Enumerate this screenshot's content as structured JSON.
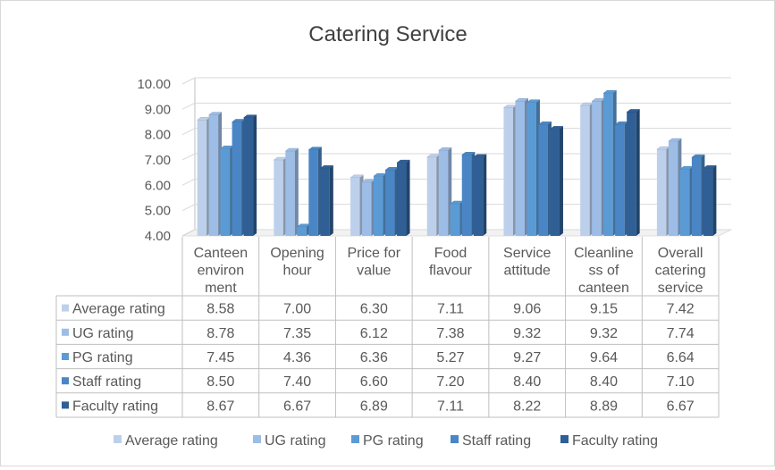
{
  "chart_data": {
    "type": "bar",
    "title": "Catering Service",
    "xlabel": "",
    "ylabel": "",
    "ylim": [
      4.0,
      10.0
    ],
    "y_ticks": [
      "4.00",
      "5.00",
      "6.00",
      "7.00",
      "8.00",
      "9.00",
      "10.00"
    ],
    "grid": true,
    "legend_position": "bottom",
    "categories": [
      [
        "Canteen",
        "environ",
        "ment"
      ],
      [
        "Opening",
        "hour"
      ],
      [
        "Price for",
        "value"
      ],
      [
        "Food",
        "flavour"
      ],
      [
        "Service",
        "attitude"
      ],
      [
        "Cleanline",
        "ss of",
        "canteen"
      ],
      [
        "Overall",
        "catering",
        "service"
      ]
    ],
    "series": [
      {
        "name": "Average rating",
        "color": "#bdd0eb",
        "values": [
          8.58,
          7.0,
          6.3,
          7.11,
          9.06,
          9.15,
          7.42
        ],
        "labels": [
          "8.58",
          "7.00",
          "6.30",
          "7.11",
          "9.06",
          "9.15",
          "7.42"
        ]
      },
      {
        "name": "UG rating",
        "color": "#9dbde6",
        "values": [
          8.78,
          7.35,
          6.12,
          7.38,
          9.32,
          9.32,
          7.74
        ],
        "labels": [
          "8.78",
          "7.35",
          "6.12",
          "7.38",
          "9.32",
          "9.32",
          "7.74"
        ]
      },
      {
        "name": "PG rating",
        "color": "#5b9bd5",
        "values": [
          7.45,
          4.36,
          6.36,
          5.27,
          9.27,
          9.64,
          6.64
        ],
        "labels": [
          "7.45",
          "4.36",
          "6.36",
          "5.27",
          "9.27",
          "9.64",
          "6.64"
        ]
      },
      {
        "name": "Staff rating",
        "color": "#4a86c5",
        "values": [
          8.5,
          7.4,
          6.6,
          7.2,
          8.4,
          8.4,
          7.1
        ],
        "labels": [
          "8.50",
          "7.40",
          "6.60",
          "7.20",
          "8.40",
          "8.40",
          "7.10"
        ]
      },
      {
        "name": "Faculty rating",
        "color": "#2f5f95",
        "values": [
          8.67,
          6.67,
          6.89,
          7.11,
          8.22,
          8.89,
          6.67
        ],
        "labels": [
          "8.67",
          "6.67",
          "6.89",
          "7.11",
          "8.22",
          "8.89",
          "6.67"
        ]
      }
    ]
  }
}
